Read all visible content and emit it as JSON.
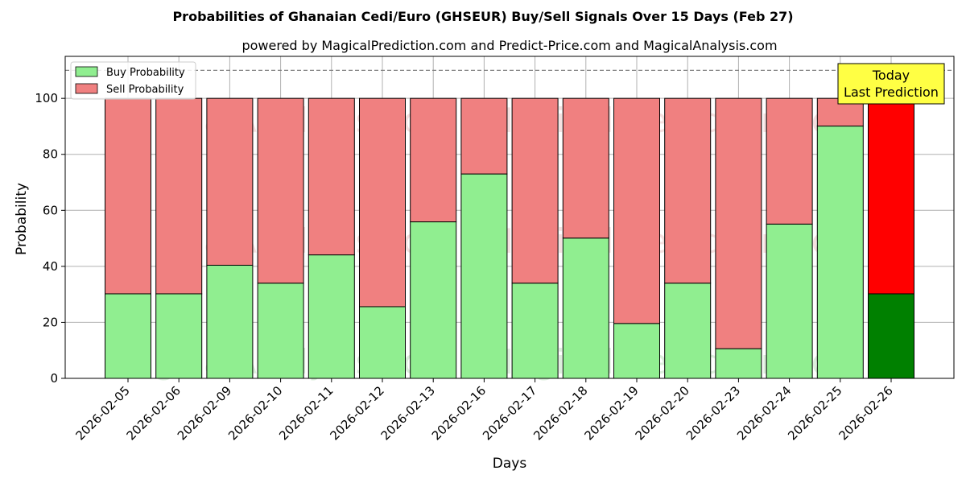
{
  "chart_data": {
    "type": "bar",
    "stacked": true,
    "title": "Probabilities of Ghanaian Cedi/Euro (GHSEUR) Buy/Sell Signals Over 15 Days (Feb 27)",
    "subtitle": "powered by MagicalPrediction.com and Predict-Price.com and MagicalAnalysis.com",
    "xlabel": "Days",
    "ylabel": "Probability",
    "ylim": [
      0,
      115
    ],
    "yticks": [
      0,
      20,
      40,
      60,
      80,
      100
    ],
    "reference_line": 110,
    "grid": true,
    "legend_position": "top-left",
    "categories": [
      "2026-02-05",
      "2026-02-06",
      "2026-02-09",
      "2026-02-10",
      "2026-02-11",
      "2026-02-12",
      "2026-02-13",
      "2026-02-16",
      "2026-02-17",
      "2026-02-18",
      "2026-02-19",
      "2026-02-20",
      "2026-02-23",
      "2026-02-24",
      "2026-02-25",
      "2026-02-26"
    ],
    "series": [
      {
        "name": "Buy Probability",
        "color": "#90ee90",
        "values": [
          30.2,
          30.2,
          40.4,
          34.0,
          44.1,
          25.6,
          55.9,
          73.0,
          34.0,
          50.1,
          19.6,
          34.0,
          10.6,
          55.1,
          90.1,
          30.2
        ]
      },
      {
        "name": "Sell Probability",
        "color": "#f08080",
        "values": [
          69.8,
          69.8,
          59.6,
          66.0,
          55.9,
          74.4,
          44.1,
          27.0,
          66.0,
          49.9,
          80.4,
          66.0,
          89.4,
          44.9,
          9.9,
          69.8
        ]
      }
    ],
    "highlight": {
      "index": 15,
      "buy_color": "#008000",
      "sell_color": "#ff0000"
    },
    "annotation": {
      "line1": "Today",
      "line2": "Last Prediction",
      "color": "#ffff44"
    },
    "watermarks": [
      "MagicalAnalysis.com",
      "MagicalPrediction.com"
    ]
  }
}
